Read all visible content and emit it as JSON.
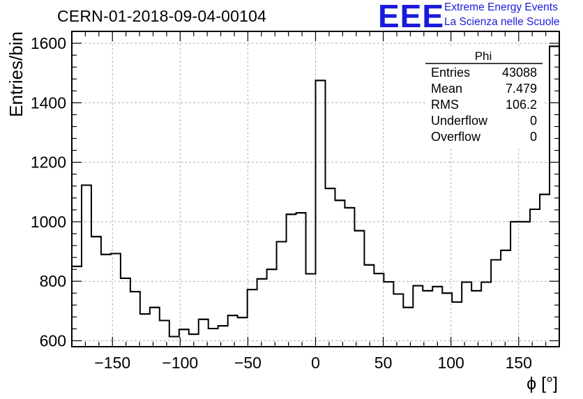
{
  "header": {
    "run_title": "CERN-01-2018-09-04-00104",
    "logo_text": "EEE",
    "logo_line1": "Extreme Energy Events",
    "logo_line2": "La Scienza nelle Scuole",
    "logo_color": "#1a1adb"
  },
  "stats": {
    "name": "Phi",
    "rows": [
      {
        "label": "Entries",
        "value": "43088"
      },
      {
        "label": "Mean",
        "value": "7.479"
      },
      {
        "label": "RMS",
        "value": "106.2"
      },
      {
        "label": "Underflow",
        "value": "0"
      },
      {
        "label": "Overflow",
        "value": "0"
      }
    ]
  },
  "chart_data": {
    "type": "histogram",
    "xlabel": "ϕ [°]",
    "ylabel": "Entries/bin",
    "xlim": [
      -180,
      180
    ],
    "ylim": [
      580,
      1640
    ],
    "grid": true,
    "bin_width": 7.2,
    "xticks": [
      -150,
      -100,
      -50,
      0,
      50,
      100,
      150
    ],
    "xtick_labels": [
      "−150",
      "−100",
      "−50",
      "0",
      "50",
      "100",
      "150"
    ],
    "yticks": [
      600,
      800,
      1000,
      1200,
      1400,
      1600
    ],
    "ytick_labels": [
      "600",
      "800",
      "1000",
      "1200",
      "1400",
      "1600"
    ],
    "line_color": "#000000",
    "values": [
      850,
      1123,
      950,
      890,
      893,
      810,
      765,
      690,
      712,
      668,
      614,
      638,
      622,
      672,
      641,
      650,
      685,
      678,
      772,
      808,
      840,
      933,
      1025,
      1030,
      825,
      1475,
      1112,
      1072,
      1047,
      970,
      855,
      826,
      798,
      757,
      712,
      785,
      768,
      782,
      760,
      730,
      797,
      768,
      797,
      872,
      904,
      1000,
      1000,
      1042,
      1092,
      1590
    ]
  }
}
